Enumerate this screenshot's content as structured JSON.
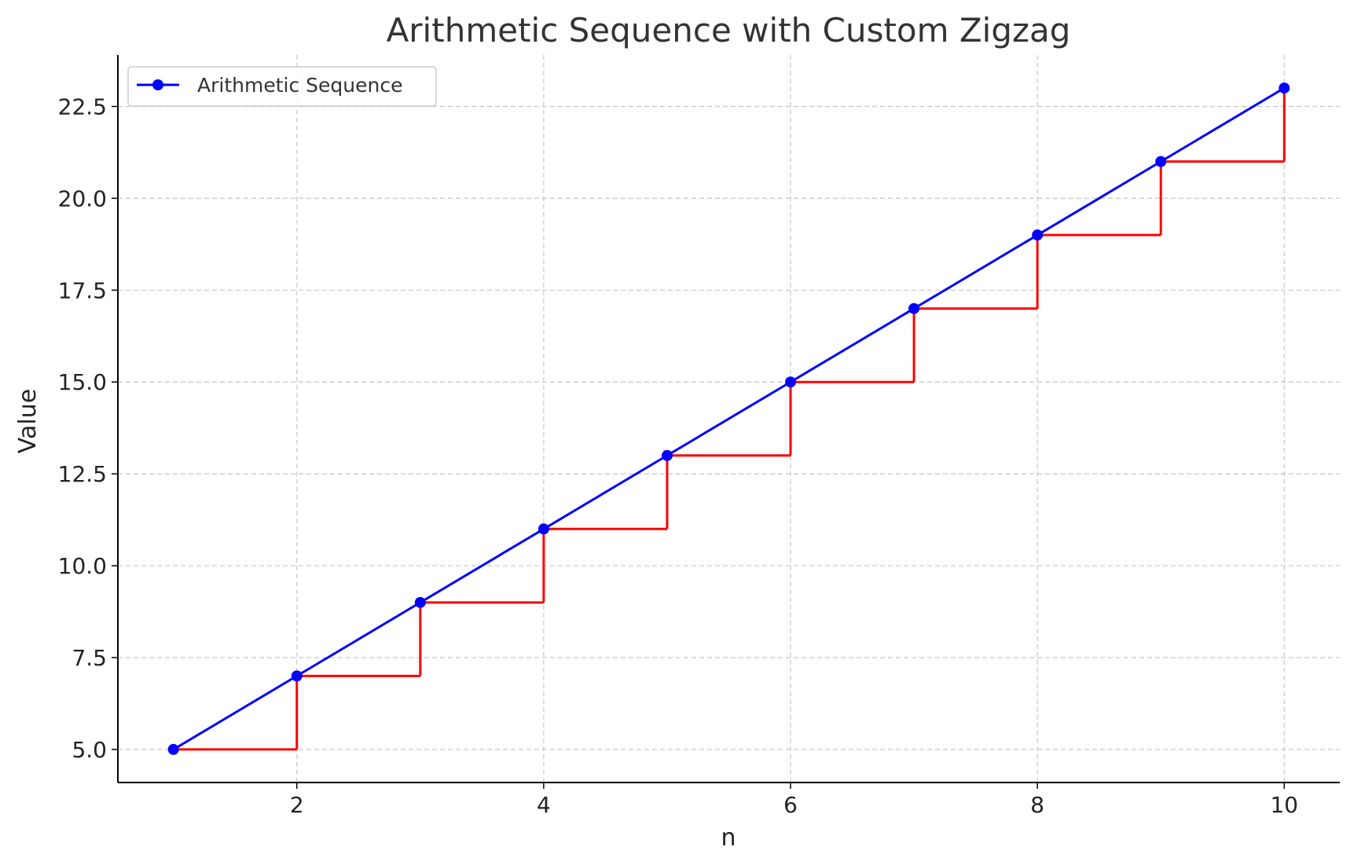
{
  "chart_data": {
    "type": "line",
    "title": "Arithmetic Sequence with Custom Zigzag",
    "xlabel": "n",
    "ylabel": "Value",
    "xlim": [
      0.55,
      10.45
    ],
    "ylim": [
      4.1,
      23.9
    ],
    "xticks": [
      2,
      4,
      6,
      8,
      10
    ],
    "xtick_labels": [
      "2",
      "4",
      "6",
      "8",
      "10"
    ],
    "yticks": [
      5.0,
      7.5,
      10.0,
      12.5,
      15.0,
      17.5,
      20.0,
      22.5
    ],
    "ytick_labels": [
      "5.0",
      "7.5",
      "10.0",
      "12.5",
      "15.0",
      "17.5",
      "20.0",
      "22.5"
    ],
    "grid": true,
    "legend_position": "top-left",
    "series": [
      {
        "name": "Arithmetic Sequence",
        "color": "#0000ff",
        "marker": "circle",
        "x": [
          1,
          2,
          3,
          4,
          5,
          6,
          7,
          8,
          9,
          10
        ],
        "y": [
          5,
          7,
          9,
          11,
          13,
          15,
          17,
          19,
          21,
          23
        ]
      }
    ],
    "zigzag": {
      "color": "#ff0000",
      "style": "step",
      "x": [
        1,
        2,
        3,
        4,
        5,
        6,
        7,
        8,
        9,
        10
      ],
      "y": [
        5,
        7,
        9,
        11,
        13,
        15,
        17,
        19,
        21,
        23
      ]
    }
  }
}
